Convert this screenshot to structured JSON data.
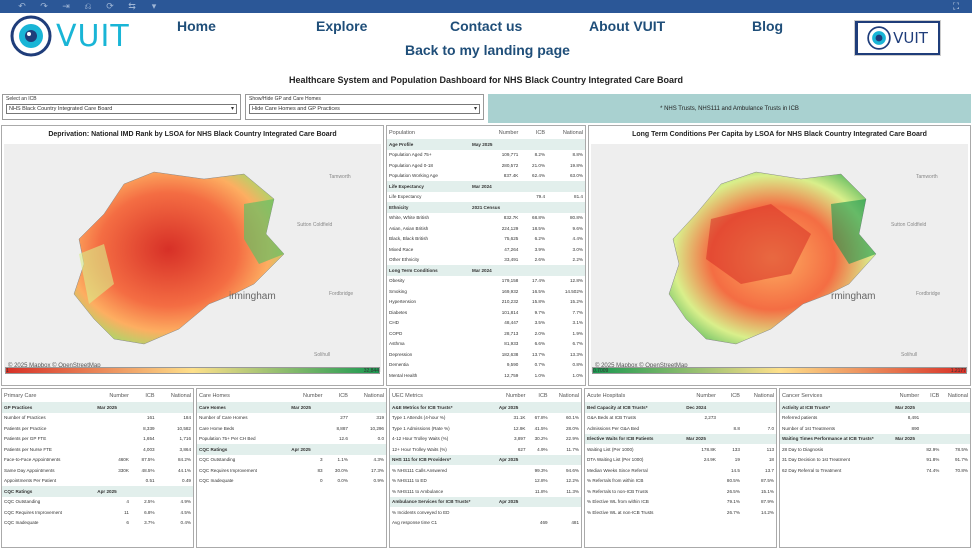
{
  "toolbar": {
    "icons": [
      "undo-icon",
      "redo-icon",
      "redo-all-icon",
      "revert-icon",
      "refresh-icon",
      "pause-icon"
    ],
    "dropdown": "▾"
  },
  "brand": {
    "name": "VUIT"
  },
  "nav": {
    "home": "Home",
    "explore": "Explore",
    "contact": "Contact us",
    "about": "About VUIT",
    "blog": "Blog",
    "back": "Back to my landing page"
  },
  "dashboard_title": "Healthcare System and Population Dashboard for NHS Black Country Integrated Care Board",
  "filters": {
    "icb_label": "Select an ICB",
    "icb_value": "NHS Black Country Integrated Care Board",
    "gp_label": "Show/Hide GP and Care Homes",
    "gp_value": "Hide Care Homes and GP Practices"
  },
  "notice": "* NHS Trusts, NHS111 and Ambulance Trusts in ICB",
  "map1": {
    "title": "Deprivation: National IMD Rank by LSOA for NHS Black Country Integrated Care Board",
    "city": "irmingham",
    "towns": [
      "Tamworth",
      "Sutton Coldfield",
      "Fordbridge",
      "Solihull",
      "Cannock"
    ],
    "credit": "© 2025 Mapbox © OpenStreetMap",
    "legend_min": "1",
    "legend_max": "32,844",
    "colors": {
      "lo": "#d73027",
      "mid": "#fee08b",
      "hi": "#1a9850"
    }
  },
  "map2": {
    "title": "Long Term Conditions Per Capita by LSOA for NHS Black Country Integrated Care Board",
    "city": "rmingham",
    "towns": [
      "Tamworth",
      "Sutton Coldfield",
      "Fordbridge",
      "Solihull"
    ],
    "credit": "© 2025 Mapbox © OpenStreetMap",
    "legend_min": "0.7009",
    "legend_max": "1.2177",
    "colors": {
      "lo": "#1a9850",
      "mid": "#fee08b",
      "hi": "#d73027"
    }
  },
  "population": {
    "headers": [
      "Population",
      "Number",
      "ICB",
      "National"
    ],
    "rows": [
      {
        "t": "h",
        "c": [
          "Age Profile",
          "May 2025",
          "",
          ""
        ]
      },
      {
        "c": [
          "Population Aged 75+",
          "109,771",
          "8.2%",
          "8.8%"
        ]
      },
      {
        "c": [
          "Population Aged 0-18",
          "280,572",
          "21.0%",
          "19.8%"
        ]
      },
      {
        "c": [
          "Population Working Age",
          "837.4K",
          "62.4%",
          "63.0%"
        ]
      },
      {
        "t": "h",
        "c": [
          "Life Expectancy",
          "Mar 2024",
          "",
          ""
        ]
      },
      {
        "c": [
          "Life Expectancy",
          "",
          "79.4",
          "81.4"
        ]
      },
      {
        "t": "h",
        "c": [
          "Ethnicity",
          "2021 Census",
          "",
          ""
        ]
      },
      {
        "c": [
          "White, White British",
          "832.7K",
          "68.8%",
          "80.8%"
        ]
      },
      {
        "c": [
          "Asian, Asian British",
          "224,129",
          "18.5%",
          "9.6%"
        ]
      },
      {
        "c": [
          "Black, Black British",
          "75,625",
          "6.2%",
          "4.4%"
        ]
      },
      {
        "c": [
          "Mixed Race",
          "47,264",
          "3.9%",
          "3.0%"
        ]
      },
      {
        "c": [
          "Other Ethnicity",
          "33,491",
          "2.6%",
          "2.2%"
        ]
      },
      {
        "t": "h",
        "c": [
          "Long Term Conditions",
          "Mar 2024",
          "",
          ""
        ]
      },
      {
        "c": [
          "Obesity",
          "179,158",
          "17.4%",
          "12.8%"
        ]
      },
      {
        "c": [
          "Smoking",
          "169,932",
          "16.5%",
          "14.502%"
        ]
      },
      {
        "c": [
          "Hypertension",
          "210,232",
          "15.8%",
          "15.2%"
        ]
      },
      {
        "c": [
          "Diabetes",
          "101,814",
          "9.7%",
          "7.7%"
        ]
      },
      {
        "c": [
          "CHD",
          "48,447",
          "3.5%",
          "3.1%"
        ]
      },
      {
        "c": [
          "COPD",
          "28,713",
          "2.0%",
          "1.9%"
        ]
      },
      {
        "c": [
          "Asthma",
          "81,933",
          "6.6%",
          "6.7%"
        ]
      },
      {
        "c": [
          "Depression",
          "182,638",
          "13.7%",
          "13.3%"
        ]
      },
      {
        "c": [
          "Dementia",
          "9,590",
          "0.7%",
          "0.8%"
        ]
      },
      {
        "c": [
          "Mental Health",
          "12,759",
          "1.0%",
          "1.0%"
        ]
      }
    ]
  },
  "primary": {
    "headers": [
      "Primary Care",
      "Number",
      "ICB",
      "National"
    ],
    "rows": [
      {
        "t": "h",
        "c": [
          "GP Practices",
          "Mar 2025",
          "",
          ""
        ]
      },
      {
        "c": [
          "Number of Practices",
          "",
          "161",
          "184"
        ]
      },
      {
        "c": [
          "Patients per Practice",
          "",
          "8,339",
          "10,582"
        ]
      },
      {
        "c": [
          "Patients per GP FTE",
          "",
          "1,654",
          "1,716"
        ]
      },
      {
        "c": [
          "Patients per Nurse FTE",
          "",
          "4,003",
          "3,864"
        ]
      },
      {
        "c": [
          "Face-to-Face Appointments",
          "460K",
          "87.5%",
          "84.2%"
        ]
      },
      {
        "c": [
          "Same Day Appointments",
          "330K",
          "48.5%",
          "44.1%"
        ]
      },
      {
        "c": [
          "Appointments Per Patient",
          "",
          "0.51",
          "0.49"
        ]
      },
      {
        "t": "h",
        "c": [
          "CQC Ratings",
          "Apr 2025",
          "",
          ""
        ]
      },
      {
        "c": [
          "CQC Outstanding",
          "4",
          "2.5%",
          "4.9%"
        ]
      },
      {
        "c": [
          "CQC Requires Improvement",
          "11",
          "6.8%",
          "4.5%"
        ]
      },
      {
        "c": [
          "CQC Inadequate",
          "6",
          "3.7%",
          "0.4%"
        ]
      }
    ]
  },
  "carehomes": {
    "headers": [
      "Care Homes",
      "Number",
      "ICB",
      "National"
    ],
    "rows": [
      {
        "t": "h",
        "c": [
          "Care Homes",
          "Mar 2025",
          "",
          ""
        ]
      },
      {
        "c": [
          "Number of Care Homes",
          "",
          "277",
          "319"
        ]
      },
      {
        "c": [
          "Care Home Beds",
          "",
          "8,887",
          "10,296"
        ]
      },
      {
        "c": [
          "Population 75+ Per CH Bed",
          "",
          "12.6",
          "0.0"
        ]
      },
      {
        "t": "h",
        "c": [
          "CQC Ratings",
          "Apr 2025",
          "",
          ""
        ]
      },
      {
        "c": [
          "CQC Outstanding",
          "3",
          "1.1%",
          "4.3%"
        ]
      },
      {
        "c": [
          "CQC Requires Improvement",
          "83",
          "30.0%",
          "17.3%"
        ]
      },
      {
        "c": [
          "CQC Inadequate",
          "0",
          "0.0%",
          "0.9%"
        ]
      }
    ]
  },
  "uec": {
    "headers": [
      "UEC Metrics",
      "Number",
      "ICB",
      "National"
    ],
    "rows": [
      {
        "t": "h",
        "c": [
          "A&E Metrics for ICB Trusts*",
          "Apr 2025",
          "",
          ""
        ]
      },
      {
        "c": [
          "Type 1 Attends (4-hour %)",
          "31.1K",
          "67.8%",
          "60.1%"
        ]
      },
      {
        "c": [
          "Type 1 Admissions (Rate %)",
          "12.9K",
          "41.5%",
          "28.0%"
        ]
      },
      {
        "c": [
          "4-12 Hour Trolley Waits (%)",
          "3,897",
          "30.2%",
          "22.9%"
        ]
      },
      {
        "c": [
          "12+ Hour Trolley Waits (%)",
          "627",
          "4.9%",
          "11.7%"
        ]
      },
      {
        "t": "h",
        "c": [
          "NHS 111 for ICB Providers*",
          "Apr 2025",
          "",
          ""
        ]
      },
      {
        "c": [
          "% NHS111 Calls Answered",
          "",
          "99.3%",
          "94.6%"
        ]
      },
      {
        "c": [
          "% NHS111 to ED",
          "",
          "12.8%",
          "12.2%"
        ]
      },
      {
        "c": [
          "% NHS111 to Ambulance",
          "",
          "11.8%",
          "11.3%"
        ]
      },
      {
        "t": "h",
        "c": [
          "Ambulance Services for ICB Trusts*",
          "Apr 2025",
          "",
          ""
        ]
      },
      {
        "c": [
          "% Incidents conveyed to ED",
          "",
          "",
          ""
        ]
      },
      {
        "c": [
          "Avg response time C1",
          "",
          "469",
          "481"
        ]
      }
    ]
  },
  "acute": {
    "headers": [
      "Acute Hospitals",
      "Number",
      "ICB",
      "National"
    ],
    "rows": [
      {
        "t": "h",
        "c": [
          "Bed Capacity at ICB Trusts*",
          "Dec 2024",
          "",
          ""
        ]
      },
      {
        "c": [
          "G&A Beds at ICB Trusts",
          "2,273",
          "",
          ""
        ]
      },
      {
        "c": [
          "Admissions Per G&A Bed",
          "",
          "8.8",
          "7.0"
        ]
      },
      {
        "t": "h",
        "c": [
          "Elective Waits for ICB Patients",
          "Mar 2025",
          "",
          ""
        ]
      },
      {
        "c": [
          "Waiting List (Per 1000)",
          "178.8K",
          "133",
          "113"
        ]
      },
      {
        "c": [
          "DTA Waiting List (Per 1000)",
          "24.9K",
          "19",
          "18"
        ]
      },
      {
        "c": [
          "Median Weeks Since Referral",
          "",
          "14.5",
          "13.7"
        ]
      },
      {
        "c": [
          "% Referrals from within ICB",
          "",
          "80.5%",
          "87.5%"
        ]
      },
      {
        "c": [
          "% Referrals to non-ICB Trusts",
          "",
          "26.5%",
          "15.1%"
        ]
      },
      {
        "c": [
          "% Elective WL from within ICB",
          "",
          "79.1%",
          "87.9%"
        ]
      },
      {
        "c": [
          "% Elective WL at non-ICB Trusts",
          "",
          "26.7%",
          "14.2%"
        ]
      }
    ]
  },
  "cancer": {
    "headers": [
      "Cancer Services",
      "Number",
      "ICB",
      "National"
    ],
    "rows": [
      {
        "t": "h",
        "c": [
          "Activity at ICB Trusts*",
          "Mar 2025",
          "",
          ""
        ]
      },
      {
        "c": [
          "Referred patients",
          "8,491",
          "",
          ""
        ]
      },
      {
        "c": [
          "Number of 1st Treatments",
          "890",
          "",
          ""
        ]
      },
      {
        "t": "h",
        "c": [
          "Waiting Times Performance at ICB Trusts*",
          "Mar 2025",
          "",
          ""
        ]
      },
      {
        "c": [
          "28 Day to Diagnosis",
          "",
          "82.9%",
          "78.5%"
        ]
      },
      {
        "c": [
          "31 Day Decision to 1st Treatment",
          "",
          "91.8%",
          "91.7%"
        ]
      },
      {
        "c": [
          "62 Day Referral to Treatment",
          "",
          "74.4%",
          "70.8%"
        ]
      }
    ]
  }
}
